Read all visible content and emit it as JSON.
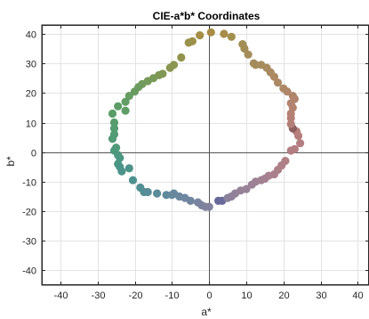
{
  "chart_data": {
    "type": "scatter",
    "title": "CIE-a*b* Coordinates",
    "xlabel": "a*",
    "ylabel": "b*",
    "xlim": [
      -45,
      43
    ],
    "ylim": [
      -45,
      43
    ],
    "xticks": [
      -40,
      -30,
      -20,
      -10,
      0,
      10,
      20,
      30,
      40
    ],
    "yticks": [
      -40,
      -30,
      -20,
      -10,
      0,
      10,
      20,
      30,
      40
    ],
    "xtick_labels": [
      "-40",
      "-30",
      "-20",
      "-10",
      "0",
      "10",
      "20",
      "30",
      "40"
    ],
    "ytick_labels": [
      "-40",
      "-30",
      "-20",
      "-10",
      "0",
      "10",
      "20",
      "30",
      "40"
    ],
    "grid": true,
    "zero_lines": true,
    "marker": "filled-circle",
    "points": [
      {
        "x": 0.5,
        "y": 40.5,
        "color": "#a88c44"
      },
      {
        "x": -2.5,
        "y": 39.5,
        "color": "#a68e46"
      },
      {
        "x": -4.5,
        "y": 37.5,
        "color": "#9e9048"
      },
      {
        "x": -5.5,
        "y": 37.0,
        "color": "#9a914a"
      },
      {
        "x": -7.5,
        "y": 32.0,
        "color": "#93934c"
      },
      {
        "x": -9.5,
        "y": 29.5,
        "color": "#8b954f"
      },
      {
        "x": -10.5,
        "y": 28.5,
        "color": "#889651"
      },
      {
        "x": -12.5,
        "y": 26.5,
        "color": "#829753"
      },
      {
        "x": -13.5,
        "y": 26.0,
        "color": "#7f9855"
      },
      {
        "x": -15.0,
        "y": 25.0,
        "color": "#7a9957"
      },
      {
        "x": -16.5,
        "y": 24.0,
        "color": "#769a5a"
      },
      {
        "x": -18.0,
        "y": 23.0,
        "color": "#719b5c"
      },
      {
        "x": -19.0,
        "y": 22.0,
        "color": "#6d9c5e"
      },
      {
        "x": -20.0,
        "y": 20.5,
        "color": "#6a9c60"
      },
      {
        "x": -21.5,
        "y": 19.0,
        "color": "#669d62"
      },
      {
        "x": -22.5,
        "y": 17.0,
        "color": "#619d65"
      },
      {
        "x": -24.5,
        "y": 15.5,
        "color": "#5d9d67"
      },
      {
        "x": -22.5,
        "y": 14.0,
        "color": "#5f9d67"
      },
      {
        "x": -26.0,
        "y": 13.0,
        "color": "#5a9d6a"
      },
      {
        "x": -25.5,
        "y": 10.0,
        "color": "#579d6d"
      },
      {
        "x": -25.5,
        "y": 8.0,
        "color": "#559c70"
      },
      {
        "x": -25.5,
        "y": 6.0,
        "color": "#539c73"
      },
      {
        "x": -26.0,
        "y": 4.5,
        "color": "#519b76"
      },
      {
        "x": -25.0,
        "y": 1.5,
        "color": "#4f9a79"
      },
      {
        "x": -25.5,
        "y": 0.5,
        "color": "#4e997c"
      },
      {
        "x": -24.5,
        "y": -1.0,
        "color": "#4d987f"
      },
      {
        "x": -24.0,
        "y": -2.0,
        "color": "#4c9782"
      },
      {
        "x": -24.5,
        "y": -4.0,
        "color": "#4c9685"
      },
      {
        "x": -24.0,
        "y": -5.0,
        "color": "#4b9588"
      },
      {
        "x": -21.5,
        "y": -5.5,
        "color": "#4c948a"
      },
      {
        "x": -23.5,
        "y": -6.5,
        "color": "#4c938b"
      },
      {
        "x": -20.5,
        "y": -9.5,
        "color": "#4e918f"
      },
      {
        "x": -18.5,
        "y": -12.0,
        "color": "#518f92"
      },
      {
        "x": -17.5,
        "y": -13.5,
        "color": "#538e95"
      },
      {
        "x": -16.5,
        "y": -13.5,
        "color": "#568d97"
      },
      {
        "x": -14.0,
        "y": -14.0,
        "color": "#5a8c99"
      },
      {
        "x": -11.5,
        "y": -14.5,
        "color": "#5e8a9b"
      },
      {
        "x": -10.0,
        "y": -14.5,
        "color": "#62899c"
      },
      {
        "x": -9.5,
        "y": -14.0,
        "color": "#66889d"
      },
      {
        "x": -8.0,
        "y": -15.0,
        "color": "#6a879e"
      },
      {
        "x": -6.5,
        "y": -15.5,
        "color": "#6e869f"
      },
      {
        "x": -5.0,
        "y": -16.5,
        "color": "#72859f"
      },
      {
        "x": -3.0,
        "y": -17.0,
        "color": "#77849f"
      },
      {
        "x": -2.0,
        "y": -18.0,
        "color": "#7b839f"
      },
      {
        "x": -1.0,
        "y": -18.5,
        "color": "#7f839e"
      },
      {
        "x": 0.0,
        "y": -18.5,
        "color": "#83829d"
      },
      {
        "x": 2.5,
        "y": -16.5,
        "color": "#67699a"
      },
      {
        "x": 3.5,
        "y": -16.5,
        "color": "#6a6a9b"
      },
      {
        "x": 5.0,
        "y": -15.5,
        "color": "#8a839c"
      },
      {
        "x": 6.0,
        "y": -15.0,
        "color": "#8e829b"
      },
      {
        "x": 7.0,
        "y": -14.0,
        "color": "#91829a"
      },
      {
        "x": 8.5,
        "y": -13.0,
        "color": "#958299"
      },
      {
        "x": 10.0,
        "y": -12.5,
        "color": "#988297"
      },
      {
        "x": 11.5,
        "y": -11.0,
        "color": "#9b8296"
      },
      {
        "x": 12.5,
        "y": -10.0,
        "color": "#9e8194"
      },
      {
        "x": 14.0,
        "y": -9.5,
        "color": "#a18193"
      },
      {
        "x": 15.0,
        "y": -9.0,
        "color": "#a48191"
      },
      {
        "x": 16.0,
        "y": -8.0,
        "color": "#a7818f"
      },
      {
        "x": 17.5,
        "y": -7.5,
        "color": "#aa808d"
      },
      {
        "x": 18.5,
        "y": -6.0,
        "color": "#ac808b"
      },
      {
        "x": 19.5,
        "y": -4.5,
        "color": "#ae7f89"
      },
      {
        "x": 20.5,
        "y": -3.0,
        "color": "#b07f86"
      },
      {
        "x": 22.0,
        "y": 0.5,
        "color": "#b27e84"
      },
      {
        "x": 23.0,
        "y": 1.0,
        "color": "#b37e82"
      },
      {
        "x": 24.5,
        "y": 3.0,
        "color": "#b47e80"
      },
      {
        "x": 24.0,
        "y": 5.5,
        "color": "#b47e7d"
      },
      {
        "x": 23.5,
        "y": 7.0,
        "color": "#b57f7b"
      },
      {
        "x": 22.5,
        "y": 8.0,
        "color": "#8c5f60"
      },
      {
        "x": 22.0,
        "y": 9.5,
        "color": "#b47f78"
      },
      {
        "x": 22.0,
        "y": 11.5,
        "color": "#b48076"
      },
      {
        "x": 22.0,
        "y": 13.0,
        "color": "#b48174"
      },
      {
        "x": 22.5,
        "y": 15.0,
        "color": "#b38271"
      },
      {
        "x": 22.0,
        "y": 16.5,
        "color": "#b2836f"
      },
      {
        "x": 23.0,
        "y": 18.0,
        "color": "#b1846d"
      },
      {
        "x": 22.5,
        "y": 19.0,
        "color": "#b0856b"
      },
      {
        "x": 21.0,
        "y": 20.5,
        "color": "#af8669"
      },
      {
        "x": 20.0,
        "y": 21.5,
        "color": "#ae8767"
      },
      {
        "x": 18.5,
        "y": 23.5,
        "color": "#ac8865"
      },
      {
        "x": 17.5,
        "y": 25.5,
        "color": "#ab8963"
      },
      {
        "x": 16.5,
        "y": 27.0,
        "color": "#a98a61"
      },
      {
        "x": 15.5,
        "y": 28.5,
        "color": "#a88b5f"
      },
      {
        "x": 14.0,
        "y": 29.5,
        "color": "#a68b5d"
      },
      {
        "x": 12.0,
        "y": 30.0,
        "color": "#a48c5b"
      },
      {
        "x": 12.5,
        "y": 29.5,
        "color": "#a58c5c"
      },
      {
        "x": 10.5,
        "y": 33.0,
        "color": "#a38d59"
      },
      {
        "x": 9.5,
        "y": 35.0,
        "color": "#a28d57"
      },
      {
        "x": 9.0,
        "y": 36.5,
        "color": "#a18e55"
      },
      {
        "x": 6.0,
        "y": 39.0,
        "color": "#a48e4d"
      },
      {
        "x": 4.0,
        "y": 40.0,
        "color": "#a68d49"
      }
    ]
  }
}
